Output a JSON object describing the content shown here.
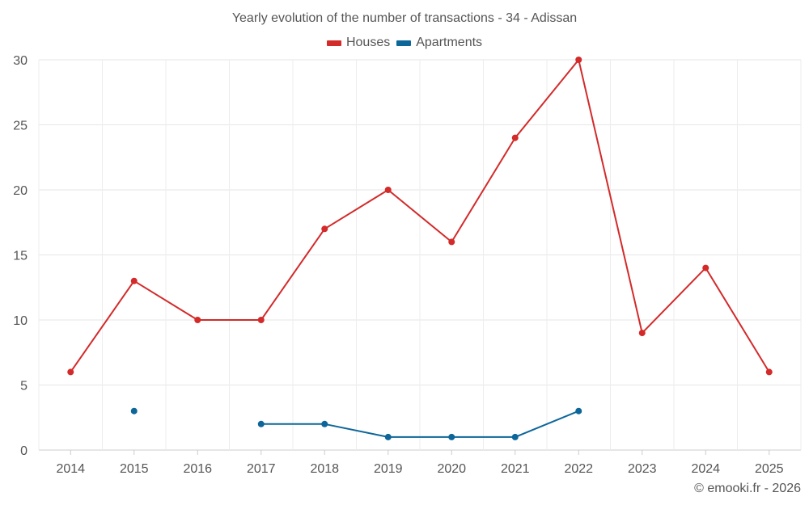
{
  "chart_data": {
    "type": "line",
    "title": "Yearly evolution of the number of transactions - 34 - Adissan",
    "categories": [
      "2014",
      "2015",
      "2016",
      "2017",
      "2018",
      "2019",
      "2020",
      "2021",
      "2022",
      "2023",
      "2024",
      "2025"
    ],
    "series": [
      {
        "name": "Houses",
        "color": "#d32a2a",
        "values": [
          6,
          13,
          10,
          10,
          17,
          20,
          16,
          24,
          30,
          9,
          14,
          6
        ]
      },
      {
        "name": "Apartments",
        "color": "#0d6699",
        "values": [
          null,
          3,
          null,
          2,
          2,
          1,
          1,
          1,
          3,
          null,
          null,
          null
        ]
      }
    ],
    "ylim": [
      0,
      30
    ],
    "yticks": [
      0,
      5,
      10,
      15,
      20,
      25,
      30
    ],
    "xlabel": "",
    "ylabel": "",
    "grid": true,
    "legend_position": "top-center"
  },
  "footer": {
    "copyright": "© emooki.fr - 2026"
  }
}
